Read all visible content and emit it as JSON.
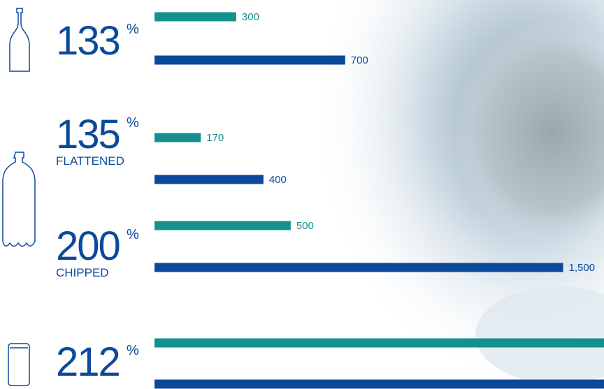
{
  "chart_data": {
    "type": "bar",
    "groups": [
      {
        "percent": "133",
        "sign": "%"
      },
      {
        "percent": "135",
        "sign": "%",
        "sublabel": "FLATTENED"
      },
      {
        "percent": "200",
        "sign": "%",
        "sublabel": "CHIPPED"
      },
      {
        "percent": "212",
        "sign": "%"
      }
    ],
    "series": [
      {
        "color": "#13918e",
        "values": [
          300,
          170,
          500,
          1700
        ],
        "value_labels": [
          "300",
          "170",
          "500",
          null
        ]
      },
      {
        "color": "#0b4a9b",
        "values": [
          700,
          400,
          1500,
          1700
        ],
        "value_labels": [
          "700",
          "400",
          "1,500",
          null
        ]
      }
    ],
    "xlim": [
      0,
      1650
    ]
  }
}
